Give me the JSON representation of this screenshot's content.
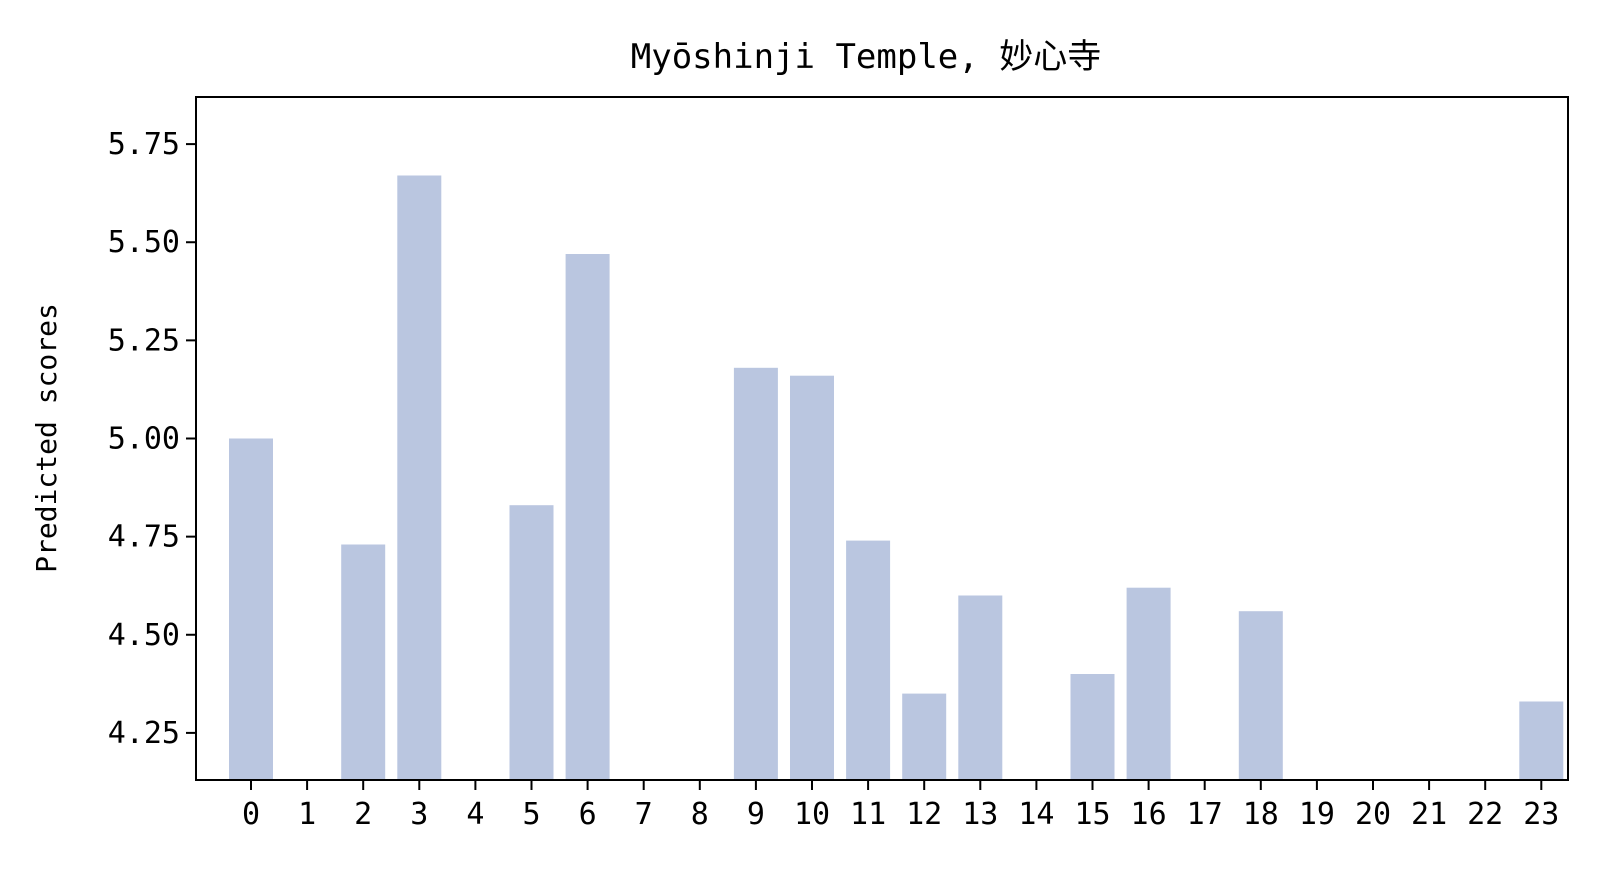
{
  "chart_data": {
    "type": "bar",
    "title": "Myōshinji Temple, 妙心寺",
    "xlabel": "",
    "ylabel": "Predicted scores",
    "categories": [
      "0",
      "1",
      "2",
      "3",
      "4",
      "5",
      "6",
      "7",
      "8",
      "9",
      "10",
      "11",
      "12",
      "13",
      "14",
      "15",
      "16",
      "17",
      "18",
      "19",
      "20",
      "21",
      "22",
      "23"
    ],
    "values": [
      5.0,
      null,
      4.73,
      5.67,
      null,
      4.83,
      5.47,
      null,
      null,
      5.18,
      5.16,
      4.74,
      4.35,
      4.6,
      null,
      4.4,
      4.62,
      null,
      4.56,
      null,
      null,
      null,
      null,
      4.33
    ],
    "ylim": [
      4.13,
      5.87
    ],
    "yticks": [
      4.25,
      4.5,
      4.75,
      5.0,
      5.25,
      5.5,
      5.75
    ],
    "ytick_labels": [
      "4.25",
      "4.50",
      "4.75",
      "5.00",
      "5.25",
      "5.50",
      "5.75"
    ],
    "bar_color": "#bac6e0",
    "grid": false,
    "legend": "none"
  }
}
